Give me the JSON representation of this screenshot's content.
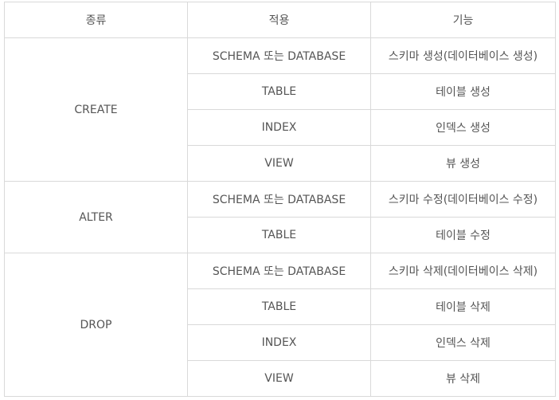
{
  "table": {
    "headers": [
      "종류",
      "적용",
      "기능"
    ],
    "groups": [
      {
        "kind": "CREATE",
        "rows": [
          {
            "target": "SCHEMA 또는 DATABASE",
            "function": "스키마 생성(데이터베이스 생성)"
          },
          {
            "target": "TABLE",
            "function": "테이블 생성"
          },
          {
            "target": "INDEX",
            "function": "인덱스 생성"
          },
          {
            "target": "VIEW",
            "function": "뷰 생성"
          }
        ]
      },
      {
        "kind": "ALTER",
        "rows": [
          {
            "target": "SCHEMA 또는 DATABASE",
            "function": "스키마 수정(데이터베이스 수정)"
          },
          {
            "target": "TABLE",
            "function": "테이블 수정"
          }
        ]
      },
      {
        "kind": "DROP",
        "rows": [
          {
            "target": "SCHEMA 또는 DATABASE",
            "function": "스키마 삭제(데이터베이스 삭제)"
          },
          {
            "target": "TABLE",
            "function": "테이블 삭제"
          },
          {
            "target": "INDEX",
            "function": "인덱스 삭제"
          },
          {
            "target": "VIEW",
            "function": "뷰 삭제"
          }
        ]
      }
    ]
  }
}
